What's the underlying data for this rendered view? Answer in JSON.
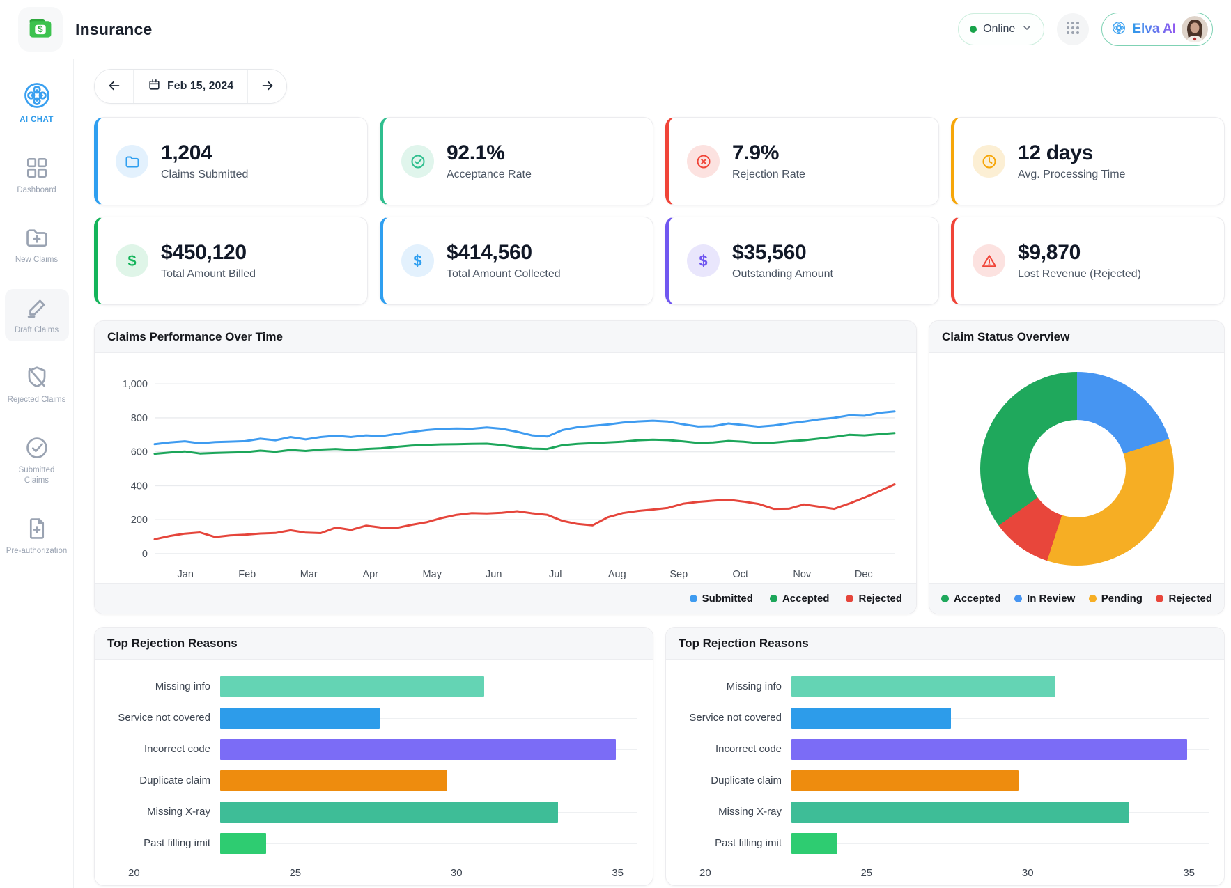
{
  "header": {
    "app_title": "Insurance",
    "logo_icon": "wallet-dollar-icon",
    "status": {
      "label": "Online",
      "dot_color": "#17a34a"
    },
    "apps_icon": "grid-dots-icon",
    "user": {
      "name": "Elva AI",
      "icon": "mandala-icon"
    }
  },
  "sidebar": {
    "items": [
      {
        "label": "AI CHAT",
        "icon": "ai-chat-mandala-icon",
        "active": true
      },
      {
        "label": "Dashboard",
        "icon": "dashboard-grid-icon"
      },
      {
        "label": "New Claims",
        "icon": "folder-plus-icon"
      },
      {
        "label": "Draft Claims",
        "icon": "pencil-icon",
        "highlighted": true
      },
      {
        "label": "Rejected Claims",
        "icon": "shield-slash-icon"
      },
      {
        "label": "Submitted Claims",
        "icon": "check-circle-icon"
      },
      {
        "label": "Pre-authorization",
        "icon": "document-plus-icon"
      }
    ]
  },
  "date_nav": {
    "date": "Feb 15, 2024",
    "prev_icon": "arrow-left-icon",
    "next_icon": "arrow-right-icon",
    "calendar_icon": "calendar-icon"
  },
  "kpi_cards": [
    {
      "value": "1,204",
      "label": "Claims Submitted",
      "accent": "#2f9ff0",
      "icon": "folder-icon",
      "icon_bg": "#e3f1fd"
    },
    {
      "value": "92.1%",
      "label": "Acceptance Rate",
      "accent": "#2fbe8e",
      "icon": "check-circle-icon",
      "icon_bg": "#e0f5ec"
    },
    {
      "value": "7.9%",
      "label": "Rejection Rate",
      "accent": "#f04438",
      "icon": "x-circle-icon",
      "icon_bg": "#fce2e0"
    },
    {
      "value": "12 days",
      "label": "Avg. Processing Time",
      "accent": "#f6a609",
      "icon": "clock-icon",
      "icon_bg": "#fcefd4"
    },
    {
      "value": "$450,120",
      "label": "Total Amount Billed",
      "accent": "#14b45a",
      "icon": "dollar-icon",
      "icon_bg": "#dff5e8"
    },
    {
      "value": "$414,560",
      "label": "Total Amount Collected",
      "accent": "#2f9ff0",
      "icon": "dollar-icon",
      "icon_bg": "#e3f1fd"
    },
    {
      "value": "$35,560",
      "label": "Outstanding Amount",
      "accent": "#7057f0",
      "icon": "dollar-icon",
      "icon_bg": "#e9e6fc"
    },
    {
      "value": "$9,870",
      "label": "Lost Revenue (Rejected)",
      "accent": "#f04438",
      "icon": "warning-triangle-icon",
      "icon_bg": "#fce2e0"
    }
  ],
  "chart_data": [
    {
      "type": "line",
      "title": "Claims Performance Over Time",
      "x_tick_labels": [
        "Jan",
        "Feb",
        "Mar",
        "Apr",
        "May",
        "Jun",
        "Jul",
        "Aug",
        "Sep",
        "Oct",
        "Nov",
        "Dec"
      ],
      "y_tick_labels": [
        "1,000",
        "800",
        "600",
        "400",
        "200",
        "0"
      ],
      "y_tick_values": [
        1000,
        800,
        600,
        400,
        200,
        0
      ],
      "ylim": [
        0,
        1050
      ],
      "grid": true,
      "legend_position": "bottom-right",
      "series": [
        {
          "name": "Submitted",
          "color": "#3e9bf0",
          "values": [
            645,
            655,
            662,
            650,
            657,
            660,
            663,
            677,
            668,
            687,
            673,
            687,
            695,
            687,
            697,
            692,
            705,
            717,
            728,
            735,
            737,
            736,
            743,
            736,
            718,
            697,
            690,
            728,
            745,
            753,
            761,
            772,
            779,
            783,
            778,
            762,
            749,
            751,
            767,
            758,
            748,
            755,
            768,
            778,
            791,
            800,
            815,
            812,
            829,
            838
          ]
        },
        {
          "name": "Accepted",
          "color": "#1ca65a",
          "values": [
            588,
            596,
            602,
            590,
            593,
            596,
            598,
            607,
            600,
            611,
            605,
            613,
            617,
            611,
            617,
            621,
            629,
            637,
            641,
            644,
            645,
            647,
            648,
            640,
            628,
            619,
            617,
            639,
            647,
            651,
            655,
            660,
            668,
            672,
            669,
            661,
            652,
            655,
            664,
            659,
            651,
            654,
            662,
            668,
            678,
            688,
            700,
            697,
            704,
            711
          ]
        },
        {
          "name": "Rejected",
          "color": "#e5453b",
          "values": [
            85,
            104,
            118,
            125,
            98,
            108,
            112,
            119,
            122,
            138,
            124,
            121,
            154,
            140,
            165,
            154,
            151,
            170,
            185,
            210,
            229,
            239,
            237,
            241,
            250,
            238,
            229,
            193,
            175,
            167,
            214,
            239,
            252,
            260,
            270,
            294,
            305,
            312,
            318,
            307,
            293,
            264,
            265,
            290,
            277,
            264,
            295,
            330,
            368,
            408
          ]
        }
      ]
    },
    {
      "type": "donut",
      "title": "Claim Status Overview",
      "legend_position": "bottom",
      "slices": [
        {
          "label": "Accepted",
          "percent": 35,
          "color": "#1fa85c"
        },
        {
          "label": "In Review",
          "percent": 20,
          "color": "#4695f2"
        },
        {
          "label": "Pending",
          "percent": 35,
          "color": "#f6ae24"
        },
        {
          "label": "Rejected",
          "percent": 10,
          "color": "#e8463b"
        }
      ],
      "draw_order_from_top_clockwise": [
        1,
        2,
        3,
        0
      ]
    },
    {
      "type": "bar",
      "orientation": "horizontal",
      "title": "Top Rejection Reasons",
      "categories": [
        "Missing info",
        "Service not covered",
        "Incorrect code",
        "Duplicate claim",
        "Missing X-ray",
        "Past filling imit"
      ],
      "values": [
        31.0,
        27.6,
        35.3,
        29.8,
        33.4,
        23.9
      ],
      "bar_colors": [
        "#64d4b4",
        "#2d9cea",
        "#7b6cf6",
        "#ee8c0e",
        "#3ebd97",
        "#2ecc71"
      ],
      "x_tick_labels": [
        "20",
        "25",
        "30",
        "35"
      ],
      "xlim": [
        20,
        35
      ],
      "grid": true
    },
    {
      "type": "bar",
      "orientation": "horizontal",
      "title": "Top Rejection Reasons",
      "categories": [
        "Missing info",
        "Service not covered",
        "Incorrect code",
        "Duplicate claim",
        "Missing X-ray",
        "Past filling imit"
      ],
      "values": [
        31.0,
        27.6,
        35.3,
        29.8,
        33.4,
        23.9
      ],
      "bar_colors": [
        "#64d4b4",
        "#2d9cea",
        "#7b6cf6",
        "#ee8c0e",
        "#3ebd97",
        "#2ecc71"
      ],
      "x_tick_labels": [
        "20",
        "25",
        "30",
        "35"
      ],
      "xlim": [
        20,
        35
      ],
      "grid": true
    }
  ]
}
